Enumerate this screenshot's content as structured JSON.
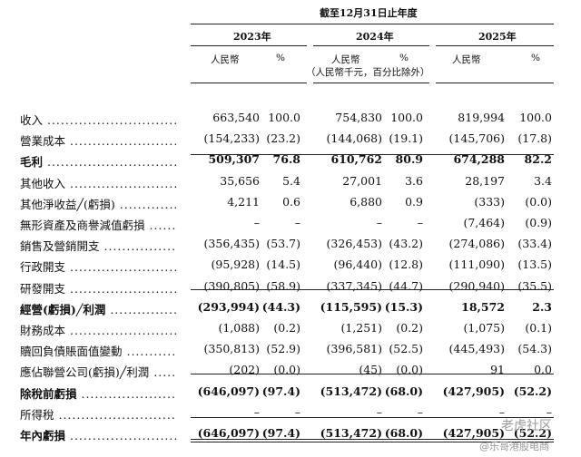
{
  "header": {
    "title": "截至12月31日止年度",
    "years": [
      "2023年",
      "2024年",
      "2025年"
    ],
    "col_rmb": "人民幣",
    "col_pct": "%",
    "unit_note": "（人民幣千元，百分比除外）"
  },
  "rows": [
    {
      "label": "收入",
      "bold": false,
      "vals": [
        "663,540",
        "100.0",
        "754,830",
        "100.0",
        "819,994",
        "100.0"
      ]
    },
    {
      "label": "營業成本",
      "bold": false,
      "vals": [
        "(154,233)",
        "(23.2)",
        "(144,068)",
        "(19.1)",
        "(145,706)",
        "(17.8)"
      ]
    },
    {
      "label": "毛利",
      "bold": true,
      "vals": [
        "509,307",
        "76.8",
        "610,762",
        "80.9",
        "674,288",
        "82.2"
      ]
    },
    {
      "label": "其他收入",
      "bold": false,
      "vals": [
        "35,656",
        "5.4",
        "27,001",
        "3.6",
        "28,197",
        "3.4"
      ]
    },
    {
      "label": "其他淨收益╱(虧損)",
      "bold": false,
      "vals": [
        "4,211",
        "0.6",
        "6,880",
        "0.9",
        "(333)",
        "(0.0)"
      ]
    },
    {
      "label": "無形資產及商譽減值虧損",
      "bold": false,
      "vals": [
        "–",
        "–",
        "–",
        "–",
        "(7,464)",
        "(0.9)"
      ]
    },
    {
      "label": "銷售及營銷開支",
      "bold": false,
      "vals": [
        "(356,435)",
        "(53.7)",
        "(326,453)",
        "(43.2)",
        "(274,086)",
        "(33.4)"
      ]
    },
    {
      "label": "行政開支",
      "bold": false,
      "vals": [
        "(95,928)",
        "(14.5)",
        "(96,440)",
        "(12.8)",
        "(111,090)",
        "(13.5)"
      ]
    },
    {
      "label": "研發開支",
      "bold": false,
      "vals": [
        "(390,805)",
        "(58.9)",
        "(337,345)",
        "(44.7)",
        "(290,940)",
        "(35.5)"
      ]
    },
    {
      "label": "經營(虧損)╱利潤",
      "bold": true,
      "vals": [
        "(293,994)",
        "(44.3)",
        "(115,595)",
        "(15.3)",
        "18,572",
        "2.3"
      ]
    },
    {
      "label": "財務成本",
      "bold": false,
      "vals": [
        "(1,088)",
        "(0.2)",
        "(1,251)",
        "(0.2)",
        "(1,075)",
        "(0.1)"
      ]
    },
    {
      "label": "贖回負債賬面值變動",
      "bold": false,
      "vals": [
        "(350,813)",
        "(52.9)",
        "(396,581)",
        "(52.5)",
        "(445,493)",
        "(54.3)"
      ]
    },
    {
      "label": "應佔聯營公司(虧損)╱利潤",
      "bold": false,
      "vals": [
        "(202)",
        "(0.0)",
        "(45)",
        "(0.0)",
        "91",
        "0.0"
      ]
    },
    {
      "label": "除稅前虧損",
      "bold": true,
      "vals": [
        "(646,097)",
        "(97.4)",
        "(513,472)",
        "(68.0)",
        "(427,905)",
        "(52.2)"
      ]
    },
    {
      "label": "所得稅",
      "bold": false,
      "vals": [
        "–",
        "–",
        "–",
        "–",
        "–",
        "–"
      ]
    },
    {
      "label": "年內虧損",
      "bold": true,
      "vals": [
        "(646,097)",
        "(97.4)",
        "(513,472)",
        "(68.0)",
        "(427,905)",
        "(52.2)"
      ]
    }
  ],
  "watermark": {
    "line1": "老虎社区",
    "line2": "@乐哥港股电商"
  }
}
